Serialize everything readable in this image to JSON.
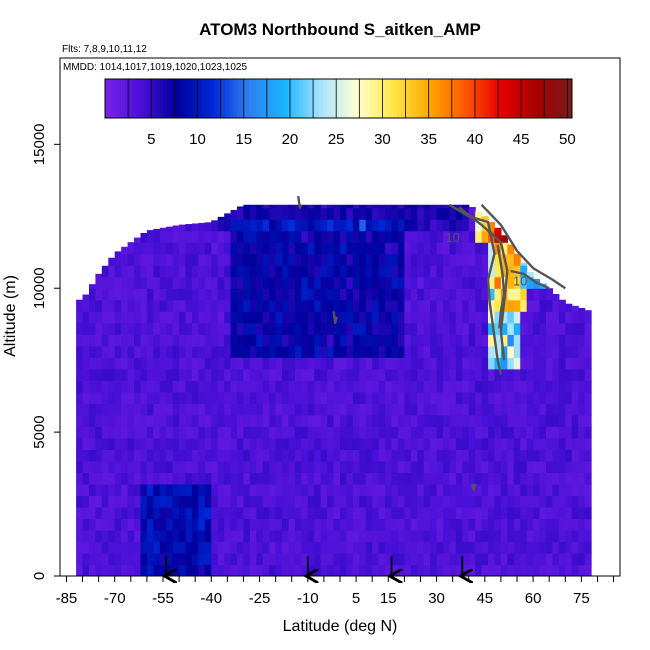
{
  "chart_data": {
    "type": "heatmap",
    "title": "ATOM3 Northbound S_aitken_AMP",
    "flights_note": "Flts: 7,8,9,10,11,12",
    "dates_note": "MMDD: 1014,1017,1019,1020,1023,1025",
    "xlabel": "Latitude (deg N)",
    "ylabel": "Altitude (m)",
    "xlim": [
      -87,
      87
    ],
    "ylim": [
      0,
      18000
    ],
    "x_ticks": [
      -85,
      -70,
      -55,
      -40,
      -25,
      -10,
      5,
      15,
      30,
      45,
      60,
      75
    ],
    "x_minor_ticks": [
      -80,
      -75,
      -65,
      -60,
      -50,
      -45,
      -35,
      -30,
      -20,
      -15,
      -5,
      0,
      10,
      20,
      25,
      35,
      40,
      50,
      55,
      65,
      70,
      80,
      85
    ],
    "y_ticks": [
      0,
      5000,
      10000,
      15000
    ],
    "colorbar": {
      "range": [
        0,
        50.5
      ],
      "ticks": [
        5,
        10,
        15,
        20,
        25,
        30,
        35,
        40,
        45,
        50
      ],
      "colors": [
        "#7b22e6",
        "#4a10d8",
        "#00009b",
        "#0028d8",
        "#2f7ff0",
        "#19b4ff",
        "#a8e2ff",
        "#ffffd0",
        "#ffe84a",
        "#ffaa00",
        "#ff5a00",
        "#e60000",
        "#a80000",
        "#7a1a1a"
      ]
    },
    "arrows_at_latitude": [
      -54,
      -10,
      16,
      38
    ],
    "contour_labels": [
      "10",
      "10"
    ],
    "coverage_top_m": [
      [
        -80,
        9600
      ],
      [
        -75,
        10500
      ],
      [
        -70,
        11200
      ],
      [
        -60,
        12000
      ],
      [
        -50,
        12200
      ],
      [
        -40,
        12300
      ],
      [
        -30,
        12900
      ],
      [
        -20,
        12900
      ],
      [
        -10,
        12900
      ],
      [
        0,
        12900
      ],
      [
        10,
        12900
      ],
      [
        20,
        12900
      ],
      [
        30,
        12900
      ],
      [
        40,
        12900
      ],
      [
        45,
        12500
      ],
      [
        50,
        12000
      ],
      [
        55,
        11200
      ],
      [
        60,
        10400
      ],
      [
        65,
        10000
      ],
      [
        70,
        9500
      ],
      [
        78,
        9200
      ]
    ]
  }
}
